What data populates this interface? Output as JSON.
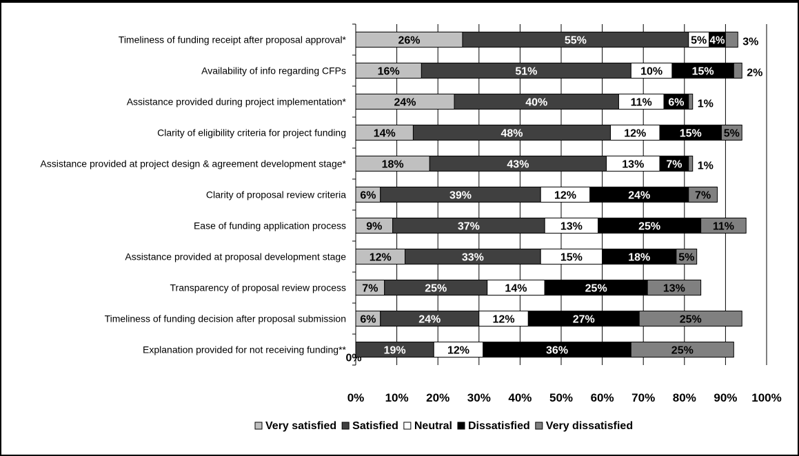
{
  "chart_data": {
    "type": "bar",
    "orientation": "horizontal",
    "stacked": true,
    "categories": [
      "Timeliness of funding receipt after proposal approval*",
      "Availability of info regarding CFPs",
      "Assistance provided during project implementation*",
      "Clarity of eligibility criteria for project funding",
      "Assistance provided at project design & agreement development stage*",
      "Clarity of proposal review criteria",
      "Ease of funding application process",
      "Assistance provided at proposal development stage",
      "Transparency of proposal review process",
      "Timeliness of funding decision after proposal submission",
      "Explanation provided for not receiving funding**"
    ],
    "series": [
      {
        "name": "Very satisfied",
        "color": "#c0c0c0",
        "text_color": "#000000",
        "values": [
          26,
          16,
          24,
          14,
          18,
          6,
          9,
          12,
          7,
          6,
          0
        ]
      },
      {
        "name": "Satisfied",
        "color": "#404040",
        "text_color": "#ffffff",
        "values": [
          55,
          51,
          40,
          48,
          43,
          39,
          37,
          33,
          25,
          24,
          19
        ]
      },
      {
        "name": "Neutral",
        "color": "#ffffff",
        "text_color": "#000000",
        "values": [
          5,
          10,
          11,
          12,
          13,
          12,
          13,
          15,
          14,
          12,
          12
        ]
      },
      {
        "name": "Dissatisfied",
        "color": "#000000",
        "text_color": "#ffffff",
        "values": [
          4,
          15,
          6,
          15,
          7,
          24,
          25,
          18,
          25,
          27,
          36
        ]
      },
      {
        "name": "Very dissatisfied",
        "color": "#808080",
        "text_color": "#000000",
        "values": [
          3,
          2,
          1,
          5,
          1,
          7,
          11,
          5,
          13,
          25,
          25
        ]
      }
    ],
    "x_ticks": [
      "0%",
      "10%",
      "20%",
      "30%",
      "40%",
      "50%",
      "60%",
      "70%",
      "80%",
      "90%",
      "100%"
    ],
    "xlim": [
      0,
      100
    ],
    "grid": true,
    "legend_position": "bottom"
  }
}
